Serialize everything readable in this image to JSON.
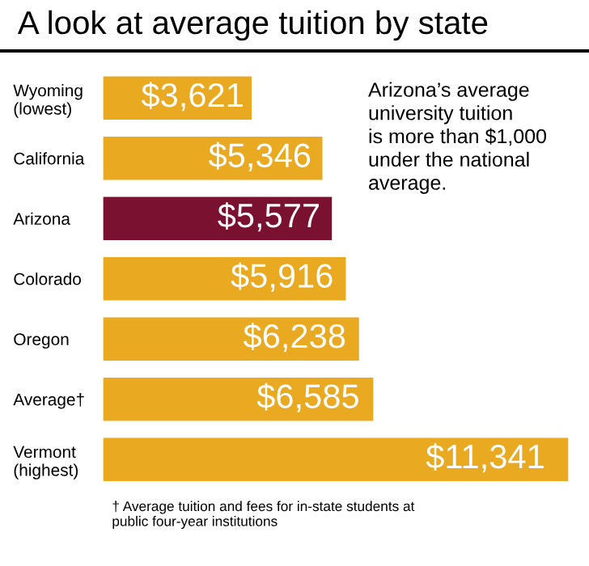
{
  "chart_data": {
    "type": "bar",
    "orientation": "horizontal",
    "title": "A look at average tuition by state",
    "categories": [
      "Wyoming\n(lowest)",
      "California",
      "Arizona",
      "Colorado",
      "Oregon",
      "Average†",
      "Vermont\n(highest)"
    ],
    "values": [
      3621,
      5346,
      5577,
      5916,
      6238,
      6585,
      11341
    ],
    "colors": [
      "#e9aa22",
      "#e9aa22",
      "#7b1131",
      "#e9aa22",
      "#e9aa22",
      "#e9aa22",
      "#e9aa22"
    ],
    "value_labels": [
      "$3,621",
      "$5,346",
      "$5,577",
      "$5,916",
      "$6,238",
      "$6,585",
      "$11,341"
    ],
    "annotations": [
      "Arizona’s average\nuniversity tuition\nis more than $1,000\nunder the national\naverage.",
      "† Average tuition and fees for in-state students at\npublic four-year institutions"
    ]
  }
}
